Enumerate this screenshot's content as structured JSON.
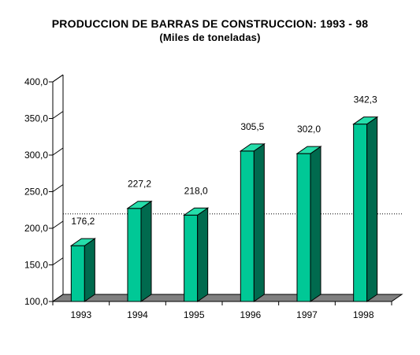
{
  "chart_data": {
    "type": "bar",
    "title": "PRODUCCION DE BARRAS DE CONSTRUCCION: 1993 - 98",
    "subtitle": "(Miles de toneladas)",
    "categories": [
      "1993",
      "1994",
      "1995",
      "1996",
      "1997",
      "1998"
    ],
    "values": [
      176.2,
      227.2,
      218.0,
      305.5,
      302.0,
      342.3
    ],
    "value_labels": [
      "176,2",
      "227,2",
      "218,0",
      "305,5",
      "302,0",
      "342,3"
    ],
    "y_ticks": [
      100,
      150,
      200,
      250,
      300,
      350,
      400
    ],
    "y_tick_labels": [
      "100,0",
      "150,0",
      "200,0",
      "250,0",
      "300,0",
      "350,0",
      "400,0"
    ],
    "ylim": [
      100,
      400
    ],
    "reference_line": 210,
    "xlabel": "",
    "ylabel": "",
    "three_d": true,
    "colors": {
      "bar_front": "#00C896",
      "bar_side": "#006A4E",
      "bar_top": "#25DDAA",
      "floor": "#808080",
      "reference": "#000000"
    }
  }
}
